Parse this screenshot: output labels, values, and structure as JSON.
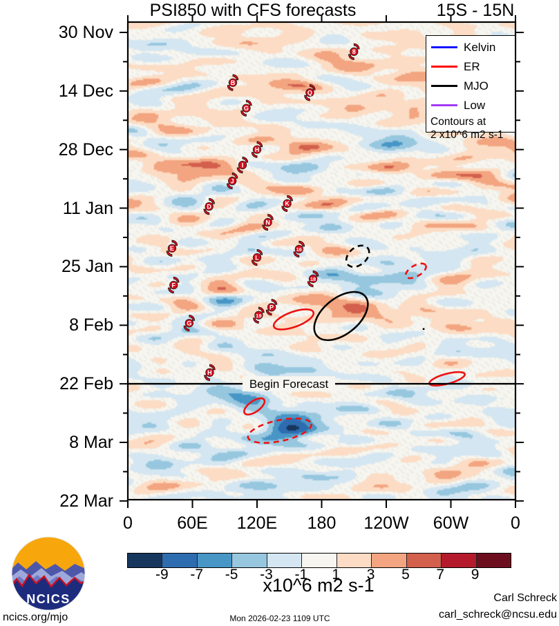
{
  "title": {
    "main": "PSI850 with CFS forecasts",
    "right": "15S - 15N"
  },
  "axes": {
    "y_labels": [
      "30 Nov",
      "14 Dec",
      "28 Dec",
      "11 Jan",
      "25 Jan",
      "8 Feb",
      "22 Feb",
      "8 Mar",
      "22 Mar"
    ],
    "x_labels": [
      "0",
      "60E",
      "120E",
      "180",
      "120W",
      "60W",
      "0"
    ]
  },
  "legend": {
    "items": [
      {
        "label": "Kelvin",
        "color": "#1414ff"
      },
      {
        "label": "ER",
        "color": "#ff0000"
      },
      {
        "label": "MJO",
        "color": "#000000"
      },
      {
        "label": "Low",
        "color": "#a23bf6"
      }
    ],
    "note1": "Contours at",
    "note2": "2 x10^6 m2 s-1"
  },
  "colorbar": {
    "tick_labels": [
      "-9",
      "-7",
      "-5",
      "-3",
      "-1",
      "1",
      "3",
      "5",
      "7",
      "9"
    ],
    "unit": "x10^6 m2 s-1"
  },
  "forecast": {
    "label": "Begin Forecast"
  },
  "footer": {
    "site": "ncics.org/mjo",
    "timestamp": "Mon 2026-02-23 1109 UTC",
    "credit_name": "Carl Schreck",
    "credit_email": "carl_schreck@ncsu.edu"
  },
  "logo": {
    "text": "NCICS"
  },
  "chart_data": {
    "type": "heatmap",
    "title": "PSI850 with CFS forecasts",
    "subtitle": "15S - 15N",
    "xlabel_ticks": [
      "0",
      "60E",
      "120E",
      "180",
      "120W",
      "60W",
      "0"
    ],
    "x_lon_deg": [
      0,
      60,
      120,
      180,
      240,
      300,
      360
    ],
    "y_tick_dates": [
      "30 Nov",
      "14 Dec",
      "28 Dec",
      "11 Jan",
      "25 Jan",
      "8 Feb",
      "22 Feb",
      "8 Mar",
      "22 Mar"
    ],
    "y_tick_days": [
      0,
      14,
      28,
      42,
      56,
      70,
      84,
      98,
      112
    ],
    "y_minor_interval_days": 7,
    "contour_note": "Contours at 2 x10^6 m2 s-1",
    "forecast_line": {
      "date": "22 Feb",
      "day": 84,
      "label": "Begin Forecast"
    },
    "colorbar": {
      "levels": [
        -9,
        -7,
        -5,
        -3,
        -1,
        1,
        3,
        5,
        7,
        9
      ],
      "unit": "x10^6 m2 s-1",
      "colors": [
        "#16365e",
        "#2e6cb0",
        "#4896c6",
        "#96c7df",
        "#d4e6f1",
        "#f6f5ef",
        "#fcdcc4",
        "#f2a580",
        "#d35f4d",
        "#b51a2c",
        "#6d0e1f"
      ]
    },
    "storm_marker_color": "#d40f1e",
    "storms": [
      {
        "label": "8",
        "lon": 210.0,
        "day": 4.6
      },
      {
        "label": "B",
        "lon": 97.5,
        "day": 12.0
      },
      {
        "label": "Q",
        "lon": 169.0,
        "day": 14.4
      },
      {
        "label": "G",
        "lon": 110.0,
        "day": 18.1
      },
      {
        "label": "H",
        "lon": 120.0,
        "day": 28.0
      },
      {
        "label": "I",
        "lon": 106.5,
        "day": 31.7
      },
      {
        "label": "J",
        "lon": 97.0,
        "day": 35.5
      },
      {
        "label": "K",
        "lon": 148.0,
        "day": 40.9
      },
      {
        "label": "D",
        "lon": 75.5,
        "day": 41.6
      },
      {
        "label": "N",
        "lon": 130.0,
        "day": 45.4
      },
      {
        "label": "E",
        "lon": 41.0,
        "day": 51.6
      },
      {
        "label": "16",
        "lon": 159.0,
        "day": 51.8
      },
      {
        "label": "L",
        "lon": 120.0,
        "day": 53.8
      },
      {
        "label": "18",
        "lon": 172.0,
        "day": 58.9
      },
      {
        "label": "F",
        "lon": 42.5,
        "day": 60.4
      },
      {
        "label": "P",
        "lon": 133.5,
        "day": 65.7
      },
      {
        "label": "19",
        "lon": 121.5,
        "day": 67.6
      },
      {
        "label": "G",
        "lon": 57.0,
        "day": 69.5
      },
      {
        "label": "H",
        "lon": 76.0,
        "day": 81.3
      }
    ],
    "wave_ellipses": [
      {
        "wave": "MJO",
        "style": "dashed",
        "lon": 213.5,
        "day": 53.5,
        "rx_deg": 12.0,
        "ry_days": 2.1,
        "rotate": -40
      },
      {
        "wave": "ER",
        "style": "dashed",
        "lon": 267.5,
        "day": 57.0,
        "rx_deg": 10.5,
        "ry_days": 1.3,
        "rotate": -30
      },
      {
        "wave": "ER",
        "style": "solid",
        "lon": 154.0,
        "day": 68.6,
        "rx_deg": 19.5,
        "ry_days": 1.8,
        "rotate": -20
      },
      {
        "wave": "MJO",
        "style": "solid",
        "lon": 198.0,
        "day": 67.8,
        "rx_deg": 29.0,
        "ry_days": 4.3,
        "rotate": -39
      },
      {
        "wave": "ER",
        "style": "solid",
        "lon": 296.5,
        "day": 82.8,
        "rx_deg": 17.0,
        "ry_days": 1.2,
        "rotate": -15
      },
      {
        "wave": "ER",
        "style": "solid",
        "lon": 117.5,
        "day": 89.4,
        "rx_deg": 11.0,
        "ry_days": 1.3,
        "rotate": -35
      },
      {
        "wave": "ER",
        "style": "dashed",
        "lon": 141.0,
        "day": 95.2,
        "rx_deg": 30.0,
        "ry_days": 2.5,
        "rotate": -12
      }
    ],
    "point_dot": {
      "lon": 274.7,
      "day": 70.9
    },
    "field_features": [
      {
        "lon": 212,
        "day": 66.5,
        "amp": 4.2,
        "slon": 48,
        "sday": 3.0
      },
      {
        "lon": 300,
        "day": 64.5,
        "amp": 2.3,
        "slon": 28,
        "sday": 2.6
      },
      {
        "lon": 151,
        "day": 94.5,
        "amp": -6.5,
        "slon": 17,
        "sday": 2.6
      },
      {
        "lon": 240,
        "day": 60.5,
        "amp": -4.0,
        "slon": 32,
        "sday": 4.2
      },
      {
        "lon": 132,
        "day": 80.5,
        "amp": -4.8,
        "slon": 13,
        "sday": 1.8
      },
      {
        "lon": 112,
        "day": 88.0,
        "amp": -2.8,
        "slon": 26,
        "sday": 2.4
      },
      {
        "lon": 42,
        "day": 4.5,
        "amp": -2.6,
        "slon": 26,
        "sday": 2.4
      },
      {
        "lon": 330,
        "day": 32.0,
        "amp": 2.6,
        "slon": 26,
        "sday": 4.5
      },
      {
        "lon": 240,
        "day": 25.0,
        "amp": -2.6,
        "slon": 22,
        "sday": 2.6
      },
      {
        "lon": 280,
        "day": 13.0,
        "amp": 2.4,
        "slon": 34,
        "sday": 3.5
      },
      {
        "lon": 60,
        "day": 31.0,
        "amp": 2.2,
        "slon": 30,
        "sday": 3.8
      },
      {
        "lon": 248,
        "day": 103.0,
        "amp": 2.0,
        "slon": 32,
        "sday": 3.0
      },
      {
        "lon": 180,
        "day": 8.0,
        "amp": 1.0,
        "slon": 150,
        "sday": 16.0
      },
      {
        "lon": 180,
        "day": 98.0,
        "amp": -1.0,
        "slon": 150,
        "sday": 13.0
      }
    ]
  }
}
